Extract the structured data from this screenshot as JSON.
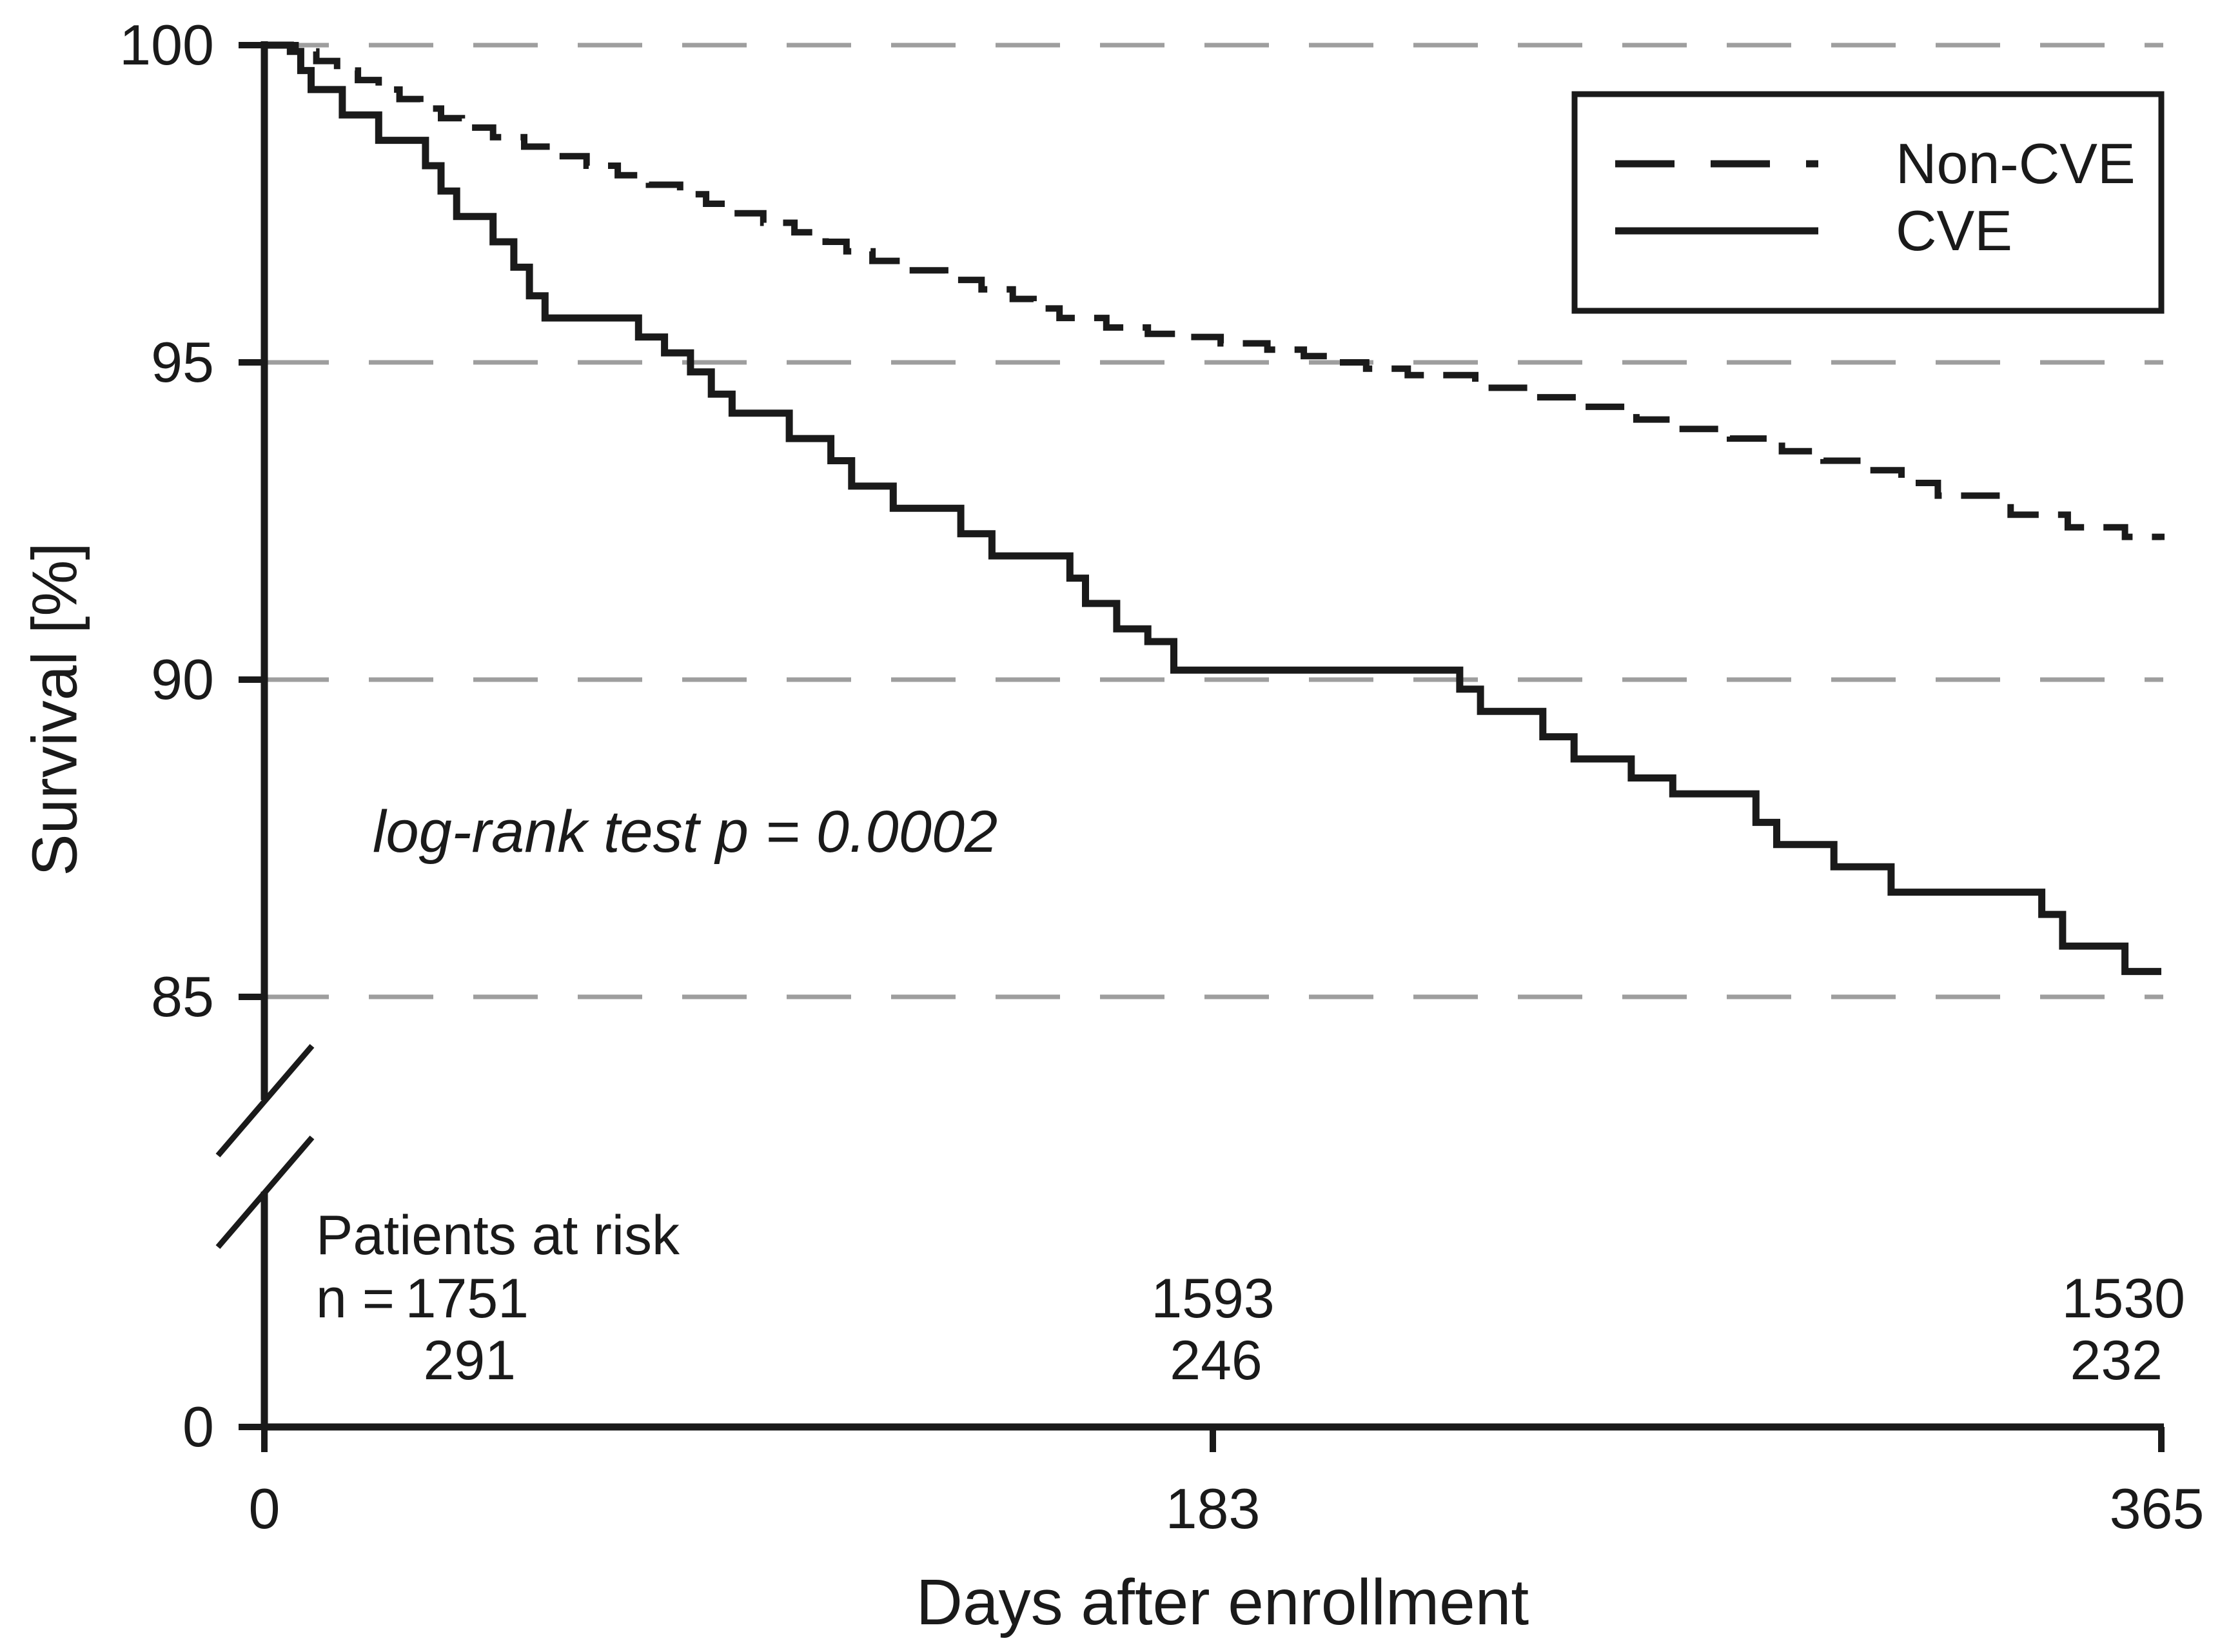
{
  "figure": {
    "background_color": "#ffffff",
    "ink_color": "#1a1a1a",
    "grid_color": "#9e9e9e"
  },
  "chart_data": {
    "type": "line",
    "subtype": "kaplan-meier-step-curve",
    "title": "",
    "xlabel": "Days after enrollment",
    "ylabel": "Survival [%]",
    "annotation": "log-rank test p = 0.0002",
    "x_ticks": [
      0,
      183,
      365
    ],
    "x_tick_labels": [
      "0",
      "183",
      "365"
    ],
    "y_tick_labels": [
      "100",
      "95",
      "90",
      "85",
      "0"
    ],
    "y_ticks_pct": [
      100,
      95,
      90,
      85,
      0
    ],
    "xlim": [
      0,
      365
    ],
    "ylim_displayed": [
      85,
      100
    ],
    "y_axis_break": true,
    "grid": "horizontal dashed gridlines at 85, 90, 95, 100",
    "legend": {
      "position": "top-right",
      "entries": [
        {
          "label": "Non-CVE",
          "line_style": "dashed"
        },
        {
          "label": "CVE",
          "line_style": "solid"
        }
      ]
    },
    "series": [
      {
        "name": "Non-CVE",
        "style": "dashed",
        "color": "#1a1a1a",
        "points": [
          [
            0,
            100
          ],
          [
            6,
            99.9
          ],
          [
            10,
            99.75
          ],
          [
            14,
            99.6
          ],
          [
            18,
            99.45
          ],
          [
            22,
            99.3
          ],
          [
            26,
            99.15
          ],
          [
            30,
            99.0
          ],
          [
            34,
            98.85
          ],
          [
            38,
            98.7
          ],
          [
            44,
            98.55
          ],
          [
            50,
            98.4
          ],
          [
            56,
            98.25
          ],
          [
            62,
            98.1
          ],
          [
            68,
            97.95
          ],
          [
            74,
            97.8
          ],
          [
            80,
            97.65
          ],
          [
            85,
            97.5
          ],
          [
            90,
            97.35
          ],
          [
            96,
            97.2
          ],
          [
            102,
            97.05
          ],
          [
            108,
            96.9
          ],
          [
            112,
            96.75
          ],
          [
            117,
            96.6
          ],
          [
            124,
            96.45
          ],
          [
            131,
            96.3
          ],
          [
            138,
            96.15
          ],
          [
            144,
            96.0
          ],
          [
            148,
            95.85
          ],
          [
            153,
            95.7
          ],
          [
            162,
            95.55
          ],
          [
            170,
            95.45
          ],
          [
            177,
            95.4
          ],
          [
            184,
            95.3
          ],
          [
            193,
            95.2
          ],
          [
            200,
            95.1
          ],
          [
            205,
            95.0
          ],
          [
            212,
            94.9
          ],
          [
            220,
            94.8
          ],
          [
            233,
            94.6
          ],
          [
            244,
            94.45
          ],
          [
            254,
            94.3
          ],
          [
            264,
            94.1
          ],
          [
            272,
            93.95
          ],
          [
            282,
            93.8
          ],
          [
            292,
            93.6
          ],
          [
            300,
            93.45
          ],
          [
            308,
            93.3
          ],
          [
            315,
            93.1
          ],
          [
            322,
            92.9
          ],
          [
            336,
            92.6
          ],
          [
            347,
            92.4
          ],
          [
            358,
            92.25
          ],
          [
            365,
            92.2
          ]
        ]
      },
      {
        "name": "CVE",
        "style": "solid",
        "color": "#1a1a1a",
        "points": [
          [
            0,
            100
          ],
          [
            5,
            99.9
          ],
          [
            7,
            99.6
          ],
          [
            9,
            99.3
          ],
          [
            15,
            98.9
          ],
          [
            22,
            98.5
          ],
          [
            31,
            98.1
          ],
          [
            34,
            97.7
          ],
          [
            37,
            97.3
          ],
          [
            44,
            96.9
          ],
          [
            48,
            96.5
          ],
          [
            51,
            96.05
          ],
          [
            54,
            95.7
          ],
          [
            72,
            95.4
          ],
          [
            77,
            95.15
          ],
          [
            82,
            94.85
          ],
          [
            86,
            94.5
          ],
          [
            90,
            94.2
          ],
          [
            101,
            93.8
          ],
          [
            109,
            93.45
          ],
          [
            113,
            93.05
          ],
          [
            121,
            92.7
          ],
          [
            134,
            92.3
          ],
          [
            140,
            91.95
          ],
          [
            155,
            91.6
          ],
          [
            158,
            91.2
          ],
          [
            164,
            90.8
          ],
          [
            170,
            90.6
          ],
          [
            175,
            90.15
          ],
          [
            230,
            89.85
          ],
          [
            234,
            89.5
          ],
          [
            246,
            89.1
          ],
          [
            252,
            88.75
          ],
          [
            263,
            88.45
          ],
          [
            271,
            88.2
          ],
          [
            287,
            87.75
          ],
          [
            291,
            87.4
          ],
          [
            302,
            87.05
          ],
          [
            313,
            86.65
          ],
          [
            342,
            86.3
          ],
          [
            346,
            85.8
          ],
          [
            358,
            85.4
          ],
          [
            365,
            85.4
          ]
        ]
      }
    ],
    "risk_table": {
      "title": "Patients at risk",
      "row_prefix": "n =",
      "times": [
        0,
        183,
        365
      ],
      "rows": [
        {
          "series": "Non-CVE",
          "counts": [
            "1751",
            "1593",
            "1530"
          ]
        },
        {
          "series": "CVE",
          "counts": [
            "291",
            "246",
            "232"
          ]
        }
      ]
    }
  }
}
